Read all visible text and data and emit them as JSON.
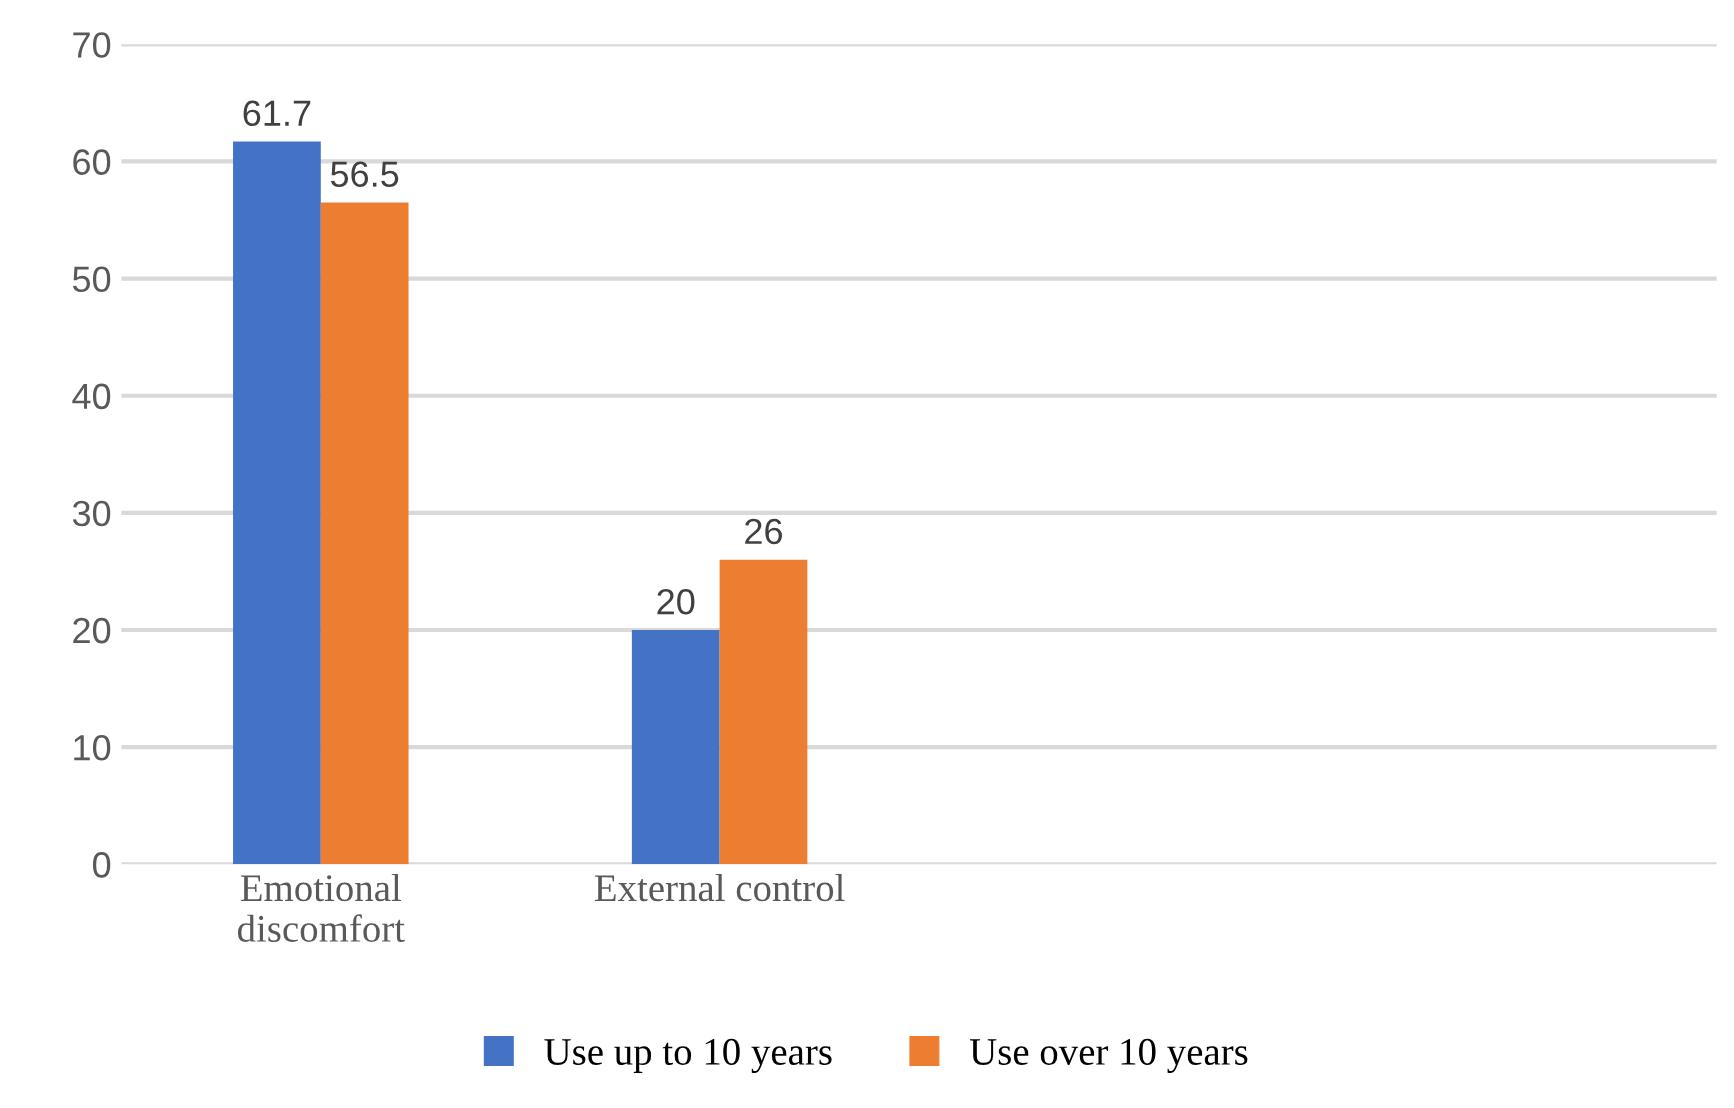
{
  "chart_data": {
    "type": "bar",
    "categories": [
      "Emotional\ndiscomfort",
      "External control",
      null,
      null
    ],
    "series": [
      {
        "name": "Use up to 10 years",
        "color": "#4472c4",
        "values": [
          61.7,
          20,
          null,
          null
        ]
      },
      {
        "name": "Use over 10 years",
        "color": "#ed7d31",
        "values": [
          56.5,
          26,
          null,
          null
        ]
      }
    ],
    "ylim": [
      0,
      70
    ],
    "yticks": [
      0,
      10,
      20,
      30,
      40,
      50,
      60,
      70
    ],
    "grid": "y",
    "legend": "bottom",
    "data_labels": true
  }
}
